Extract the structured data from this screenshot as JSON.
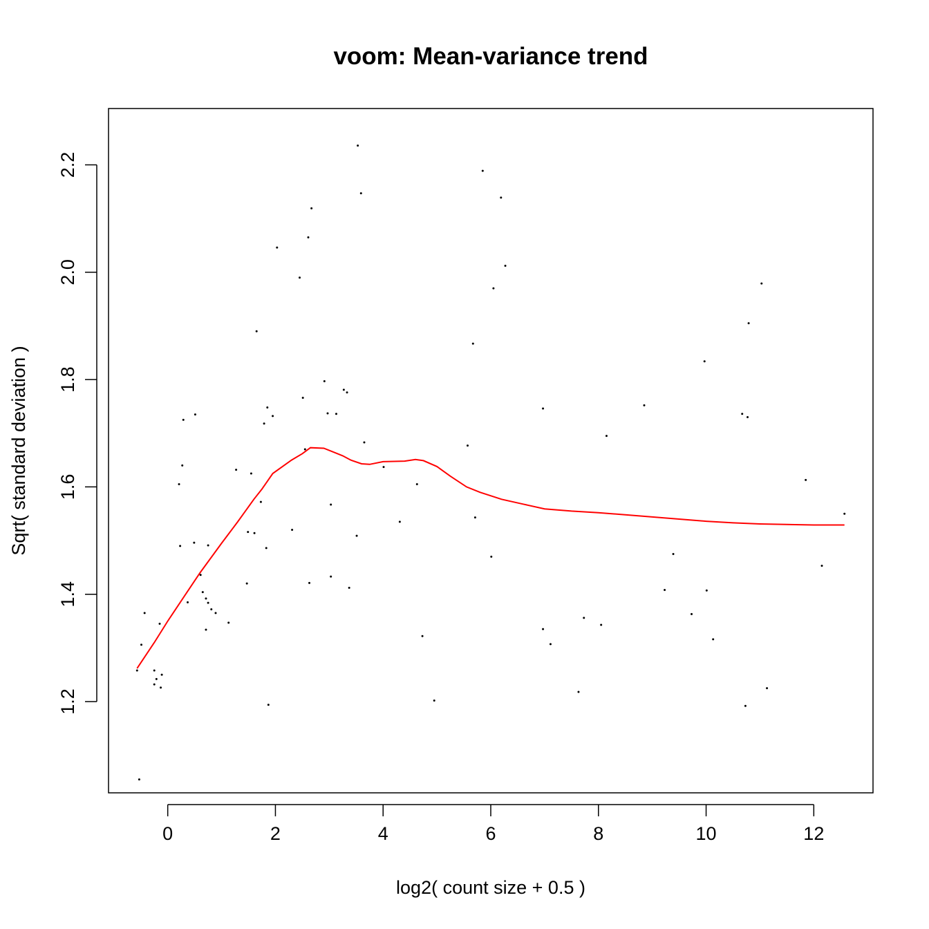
{
  "chart_data": {
    "type": "scatter",
    "title": "voom: Mean-variance trend",
    "xlabel": "log2( count size + 0.5 )",
    "ylabel": "Sqrt( standard deviation )",
    "xlim": [
      -1.1,
      13.1
    ],
    "ylim": [
      1.03,
      2.305
    ],
    "xticks": [
      0,
      2,
      4,
      6,
      8,
      10,
      12
    ],
    "yticks": [
      1.2,
      1.4,
      1.6,
      1.8,
      2.0,
      2.2
    ],
    "xtick_labels": [
      "0",
      "2",
      "4",
      "6",
      "8",
      "10",
      "12"
    ],
    "ytick_labels": [
      "1.2",
      "1.4",
      "1.6",
      "1.8",
      "2.0",
      "2.2"
    ],
    "grid": false,
    "colors": {
      "points": "#000000",
      "trend": "#ff0000"
    },
    "points": [
      [
        -0.57,
        1.258
      ],
      [
        -0.53,
        1.055
      ],
      [
        -0.49,
        1.306
      ],
      [
        -0.43,
        1.365
      ],
      [
        -0.25,
        1.258
      ],
      [
        -0.25,
        1.232
      ],
      [
        -0.21,
        1.242
      ],
      [
        -0.15,
        1.345
      ],
      [
        -0.13,
        1.226
      ],
      [
        -0.11,
        1.25
      ],
      [
        0.21,
        1.605
      ],
      [
        0.23,
        1.49
      ],
      [
        0.27,
        1.64
      ],
      [
        0.29,
        1.725
      ],
      [
        0.37,
        1.385
      ],
      [
        0.49,
        1.496
      ],
      [
        0.51,
        1.735
      ],
      [
        0.61,
        1.436
      ],
      [
        0.65,
        1.404
      ],
      [
        0.71,
        1.334
      ],
      [
        0.71,
        1.392
      ],
      [
        0.75,
        1.384
      ],
      [
        0.75,
        1.491
      ],
      [
        0.81,
        1.372
      ],
      [
        0.89,
        1.365
      ],
      [
        1.13,
        1.347
      ],
      [
        1.27,
        1.632
      ],
      [
        1.47,
        1.42
      ],
      [
        1.49,
        1.516
      ],
      [
        1.55,
        1.625
      ],
      [
        1.61,
        1.514
      ],
      [
        1.65,
        1.89
      ],
      [
        1.73,
        1.572
      ],
      [
        1.79,
        1.718
      ],
      [
        1.83,
        1.486
      ],
      [
        1.85,
        1.748
      ],
      [
        1.87,
        1.194
      ],
      [
        1.95,
        1.732
      ],
      [
        2.03,
        2.046
      ],
      [
        2.31,
        1.52
      ],
      [
        2.45,
        1.99
      ],
      [
        2.51,
        1.766
      ],
      [
        2.55,
        1.67
      ],
      [
        2.61,
        2.065
      ],
      [
        2.63,
        1.421
      ],
      [
        2.67,
        2.119
      ],
      [
        2.91,
        1.797
      ],
      [
        2.97,
        1.737
      ],
      [
        3.03,
        1.567
      ],
      [
        3.03,
        1.433
      ],
      [
        3.13,
        1.736
      ],
      [
        3.27,
        1.781
      ],
      [
        3.33,
        1.776
      ],
      [
        3.37,
        1.412
      ],
      [
        3.51,
        1.509
      ],
      [
        3.53,
        2.236
      ],
      [
        3.59,
        2.147
      ],
      [
        3.65,
        1.683
      ],
      [
        4.01,
        1.637
      ],
      [
        4.31,
        1.535
      ],
      [
        4.63,
        1.605
      ],
      [
        4.73,
        1.322
      ],
      [
        4.95,
        1.202
      ],
      [
        5.57,
        1.677
      ],
      [
        5.67,
        1.867
      ],
      [
        5.71,
        1.543
      ],
      [
        5.85,
        2.189
      ],
      [
        6.01,
        1.47
      ],
      [
        6.05,
        1.97
      ],
      [
        6.19,
        2.139
      ],
      [
        6.27,
        2.012
      ],
      [
        6.97,
        1.746
      ],
      [
        6.97,
        1.335
      ],
      [
        7.11,
        1.307
      ],
      [
        7.63,
        1.218
      ],
      [
        7.73,
        1.356
      ],
      [
        8.05,
        1.343
      ],
      [
        8.15,
        1.695
      ],
      [
        8.85,
        1.752
      ],
      [
        9.23,
        1.408
      ],
      [
        9.39,
        1.475
      ],
      [
        9.73,
        1.363
      ],
      [
        9.97,
        1.834
      ],
      [
        10.01,
        1.407
      ],
      [
        10.13,
        1.316
      ],
      [
        10.67,
        1.736
      ],
      [
        10.73,
        1.192
      ],
      [
        10.77,
        1.73
      ],
      [
        10.79,
        1.905
      ],
      [
        11.03,
        1.979
      ],
      [
        11.13,
        1.225
      ],
      [
        11.85,
        1.613
      ],
      [
        12.15,
        1.453
      ],
      [
        12.57,
        1.55
      ]
    ],
    "trend": [
      [
        -0.57,
        1.262
      ],
      [
        -0.25,
        1.31
      ],
      [
        0.0,
        1.35
      ],
      [
        0.3,
        1.395
      ],
      [
        0.6,
        1.44
      ],
      [
        1.0,
        1.495
      ],
      [
        1.3,
        1.535
      ],
      [
        1.6,
        1.577
      ],
      [
        1.75,
        1.596
      ],
      [
        1.95,
        1.625
      ],
      [
        2.3,
        1.65
      ],
      [
        2.5,
        1.662
      ],
      [
        2.65,
        1.673
      ],
      [
        2.9,
        1.672
      ],
      [
        3.1,
        1.664
      ],
      [
        3.25,
        1.658
      ],
      [
        3.4,
        1.65
      ],
      [
        3.6,
        1.643
      ],
      [
        3.75,
        1.642
      ],
      [
        4.0,
        1.647
      ],
      [
        4.4,
        1.648
      ],
      [
        4.6,
        1.651
      ],
      [
        4.75,
        1.649
      ],
      [
        5.0,
        1.638
      ],
      [
        5.25,
        1.62
      ],
      [
        5.55,
        1.6
      ],
      [
        5.8,
        1.59
      ],
      [
        6.2,
        1.577
      ],
      [
        6.6,
        1.568
      ],
      [
        7.0,
        1.559
      ],
      [
        7.5,
        1.555
      ],
      [
        8.0,
        1.552
      ],
      [
        8.5,
        1.548
      ],
      [
        9.0,
        1.544
      ],
      [
        9.5,
        1.54
      ],
      [
        10.0,
        1.536
      ],
      [
        10.5,
        1.533
      ],
      [
        11.0,
        1.531
      ],
      [
        11.5,
        1.53
      ],
      [
        12.0,
        1.529
      ],
      [
        12.57,
        1.529
      ]
    ]
  }
}
